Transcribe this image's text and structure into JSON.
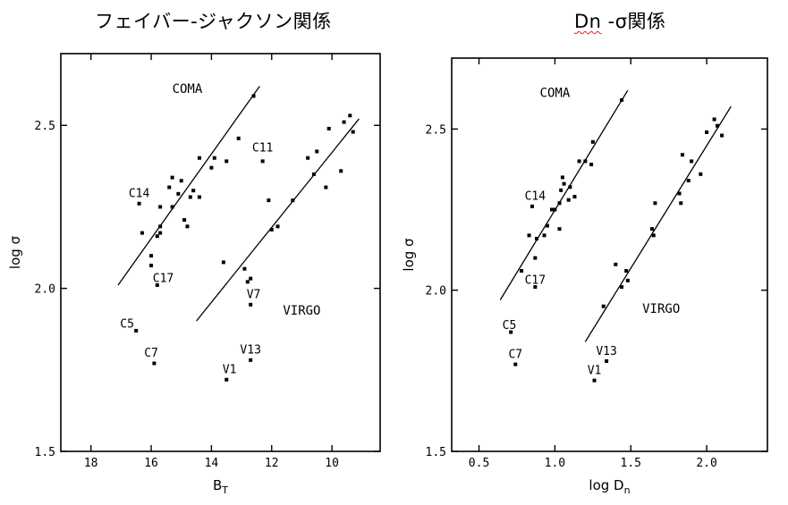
{
  "charts": [
    {
      "title": "フェイバー-ジャクソン関係",
      "chart_data": {
        "type": "scatter",
        "xlabel": "B",
        "xlabel_sub": "T",
        "ylabel": "log σ",
        "xlim": [
          19,
          8.4
        ],
        "ylim": [
          1.5,
          2.72
        ],
        "x_reversed": true,
        "xticks": [
          18,
          16,
          14,
          12,
          10
        ],
        "yticks": [
          1.5,
          2.0,
          2.5
        ],
        "ytick_labels": [
          "1.5",
          "2.0",
          "2.5"
        ],
        "group_labels": [
          {
            "text": "COMA",
            "x": 14.8,
            "y": 2.6
          },
          {
            "text": "VIRGO",
            "x": 11.0,
            "y": 1.92
          }
        ],
        "annotations": [
          {
            "text": "C14",
            "x": 16.4,
            "y": 2.28
          },
          {
            "text": "C11",
            "x": 12.3,
            "y": 2.42
          },
          {
            "text": "C17",
            "x": 15.6,
            "y": 2.02
          },
          {
            "text": "V7",
            "x": 12.6,
            "y": 1.97
          },
          {
            "text": "C5",
            "x": 16.8,
            "y": 1.88
          },
          {
            "text": "C7",
            "x": 16.0,
            "y": 1.79
          },
          {
            "text": "V13",
            "x": 12.7,
            "y": 1.8
          },
          {
            "text": "V1",
            "x": 13.4,
            "y": 1.74
          }
        ],
        "fit_lines": [
          {
            "name": "COMA",
            "x": [
              17.1,
              12.4
            ],
            "y": [
              2.01,
              2.62
            ]
          },
          {
            "name": "VIRGO",
            "x": [
              14.5,
              9.1
            ],
            "y": [
              1.9,
              2.52
            ]
          }
        ],
        "series": [
          {
            "name": "COMA",
            "points": [
              [
                16.4,
                2.26
              ],
              [
                16.3,
                2.17
              ],
              [
                16.0,
                2.1
              ],
              [
                16.0,
                2.07
              ],
              [
                15.8,
                2.16
              ],
              [
                15.7,
                2.19
              ],
              [
                15.7,
                2.25
              ],
              [
                15.7,
                2.17
              ],
              [
                15.4,
                2.31
              ],
              [
                15.3,
                2.25
              ],
              [
                15.3,
                2.34
              ],
              [
                15.1,
                2.29
              ],
              [
                15.0,
                2.33
              ],
              [
                14.9,
                2.21
              ],
              [
                14.8,
                2.19
              ],
              [
                14.7,
                2.28
              ],
              [
                14.6,
                2.3
              ],
              [
                14.4,
                2.28
              ],
              [
                14.4,
                2.4
              ],
              [
                14.0,
                2.37
              ],
              [
                13.9,
                2.4
              ],
              [
                13.5,
                2.39
              ],
              [
                13.1,
                2.46
              ],
              [
                12.6,
                2.59
              ],
              [
                15.8,
                2.01
              ],
              [
                16.5,
                1.87
              ],
              [
                15.9,
                1.77
              ]
            ]
          },
          {
            "name": "VIRGO",
            "points": [
              [
                12.3,
                2.39
              ],
              [
                12.1,
                2.27
              ],
              [
                12.0,
                2.18
              ],
              [
                11.8,
                2.19
              ],
              [
                11.3,
                2.27
              ],
              [
                10.8,
                2.4
              ],
              [
                10.6,
                2.35
              ],
              [
                10.5,
                2.42
              ],
              [
                10.2,
                2.31
              ],
              [
                10.1,
                2.49
              ],
              [
                9.7,
                2.36
              ],
              [
                9.6,
                2.51
              ],
              [
                9.4,
                2.53
              ],
              [
                9.3,
                2.48
              ],
              [
                13.6,
                2.08
              ],
              [
                12.9,
                2.06
              ],
              [
                12.8,
                2.02
              ],
              [
                12.7,
                2.03
              ],
              [
                12.7,
                1.95
              ],
              [
                12.7,
                1.78
              ],
              [
                13.5,
                1.72
              ]
            ]
          }
        ]
      }
    },
    {
      "title_prefix": "Dn",
      "title_suffix": " -σ関係",
      "chart_data": {
        "type": "scatter",
        "xlabel": "log D",
        "xlabel_sub": "n",
        "ylabel": "log σ",
        "xlim": [
          0.32,
          2.4
        ],
        "ylim": [
          1.5,
          2.72
        ],
        "xticks": [
          0.5,
          1.0,
          1.5,
          2.0
        ],
        "xtick_labels": [
          "0.5",
          "1.0",
          "1.5",
          "2.0"
        ],
        "yticks": [
          1.5,
          2.0,
          2.5
        ],
        "ytick_labels": [
          "1.5",
          "2.0",
          "2.5"
        ],
        "group_labels": [
          {
            "text": "COMA",
            "x": 1.0,
            "y": 2.6
          },
          {
            "text": "VIRGO",
            "x": 1.7,
            "y": 1.93
          }
        ],
        "annotations": [
          {
            "text": "C14",
            "x": 0.87,
            "y": 2.28
          },
          {
            "text": "C17",
            "x": 0.87,
            "y": 2.02
          },
          {
            "text": "C5",
            "x": 0.7,
            "y": 1.88
          },
          {
            "text": "C7",
            "x": 0.74,
            "y": 1.79
          },
          {
            "text": "V13",
            "x": 1.34,
            "y": 1.8
          },
          {
            "text": "V1",
            "x": 1.26,
            "y": 1.74
          }
        ],
        "fit_lines": [
          {
            "name": "COMA",
            "x": [
              0.64,
              1.48
            ],
            "y": [
              1.97,
              2.62
            ]
          },
          {
            "name": "VIRGO",
            "x": [
              1.2,
              2.16
            ],
            "y": [
              1.84,
              2.57
            ]
          }
        ],
        "series": [
          {
            "name": "COMA",
            "points": [
              [
                0.78,
                2.06
              ],
              [
                0.83,
                2.17
              ],
              [
                0.85,
                2.26
              ],
              [
                0.87,
                2.1
              ],
              [
                0.88,
                2.16
              ],
              [
                0.93,
                2.17
              ],
              [
                0.95,
                2.2
              ],
              [
                0.98,
                2.25
              ],
              [
                1.0,
                2.25
              ],
              [
                1.03,
                2.19
              ],
              [
                1.03,
                2.27
              ],
              [
                1.04,
                2.31
              ],
              [
                1.05,
                2.35
              ],
              [
                1.06,
                2.33
              ],
              [
                1.09,
                2.28
              ],
              [
                1.1,
                2.32
              ],
              [
                1.13,
                2.29
              ],
              [
                1.16,
                2.4
              ],
              [
                1.2,
                2.4
              ],
              [
                1.24,
                2.39
              ],
              [
                1.25,
                2.46
              ],
              [
                1.44,
                2.59
              ],
              [
                0.87,
                2.01
              ],
              [
                0.71,
                1.87
              ],
              [
                0.74,
                1.77
              ]
            ]
          },
          {
            "name": "VIRGO",
            "points": [
              [
                1.32,
                1.95
              ],
              [
                1.4,
                2.08
              ],
              [
                1.44,
                2.01
              ],
              [
                1.47,
                2.06
              ],
              [
                1.48,
                2.03
              ],
              [
                1.64,
                2.19
              ],
              [
                1.65,
                2.17
              ],
              [
                1.66,
                2.27
              ],
              [
                1.82,
                2.3
              ],
              [
                1.83,
                2.27
              ],
              [
                1.84,
                2.42
              ],
              [
                1.88,
                2.34
              ],
              [
                1.9,
                2.4
              ],
              [
                1.96,
                2.36
              ],
              [
                2.0,
                2.49
              ],
              [
                2.05,
                2.53
              ],
              [
                2.07,
                2.51
              ],
              [
                2.1,
                2.48
              ],
              [
                1.34,
                1.78
              ],
              [
                1.26,
                1.72
              ]
            ]
          }
        ]
      }
    }
  ]
}
